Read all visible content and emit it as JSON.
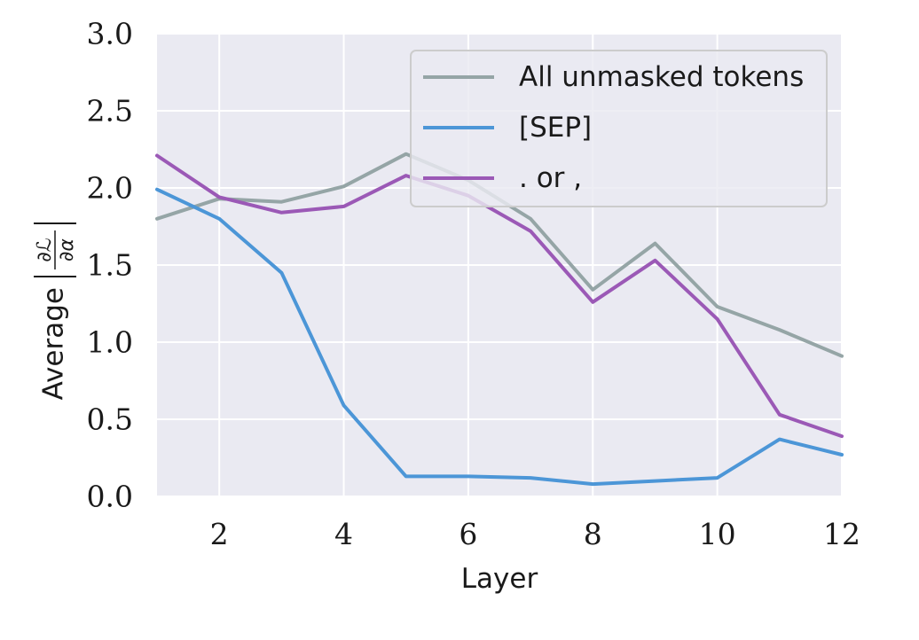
{
  "chart_data": {
    "type": "line",
    "x": [
      1,
      2,
      3,
      4,
      5,
      6,
      7,
      8,
      9,
      10,
      11,
      12
    ],
    "series": [
      {
        "name": "All unmasked tokens",
        "color": "#95a5a6",
        "values": [
          1.8,
          1.93,
          1.91,
          2.01,
          2.22,
          2.05,
          1.8,
          1.34,
          1.64,
          1.23,
          1.08,
          0.91
        ]
      },
      {
        "name": "[SEP]",
        "color": "#4c96d7",
        "values": [
          1.99,
          1.8,
          1.45,
          0.59,
          0.13,
          0.13,
          0.12,
          0.08,
          0.1,
          0.12,
          0.37,
          0.27
        ]
      },
      {
        "name": ". or ,",
        "color": "#9b59b6",
        "values": [
          2.21,
          1.94,
          1.84,
          1.88,
          2.08,
          1.95,
          1.72,
          1.26,
          1.53,
          1.15,
          0.53,
          0.39
        ]
      }
    ],
    "xlabel": "Layer",
    "ylabel_prefix": "Average",
    "ylabel_symbol_num": "∂ℒ",
    "ylabel_symbol_den": "∂α",
    "xlim": [
      1,
      12
    ],
    "ylim": [
      0,
      3
    ],
    "x_ticks": [
      "2",
      "4",
      "6",
      "8",
      "10",
      "12"
    ],
    "y_ticks": [
      "0.0",
      "0.5",
      "1.0",
      "1.5",
      "2.0",
      "2.5",
      "3.0"
    ],
    "grid": true,
    "legend_position": "top-right"
  }
}
